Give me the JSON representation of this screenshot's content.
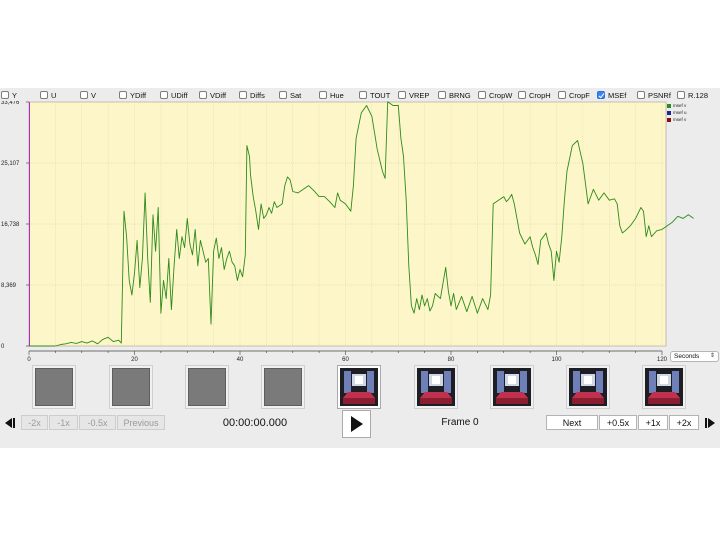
{
  "filters": [
    {
      "label": "Y",
      "checked": false
    },
    {
      "label": "U",
      "checked": false
    },
    {
      "label": "V",
      "checked": false
    },
    {
      "label": "YDiff",
      "checked": false
    },
    {
      "label": "UDiff",
      "checked": false
    },
    {
      "label": "VDiff",
      "checked": false
    },
    {
      "label": "Diffs",
      "checked": false
    },
    {
      "label": "Sat",
      "checked": false
    },
    {
      "label": "Hue",
      "checked": false
    },
    {
      "label": "TOUT",
      "checked": false
    },
    {
      "label": "VREP",
      "checked": false
    },
    {
      "label": "BRNG",
      "checked": false
    },
    {
      "label": "CropW",
      "checked": false
    },
    {
      "label": "CropH",
      "checked": false
    },
    {
      "label": "CropF",
      "checked": false
    },
    {
      "label": "MSEf",
      "checked": true
    },
    {
      "label": "PSNRf",
      "checked": false
    },
    {
      "label": "R.128",
      "checked": false
    }
  ],
  "legend": [
    {
      "label": "msef v",
      "color": "#2e8b1a"
    },
    {
      "label": "msef u",
      "color": "#1c2a8a"
    },
    {
      "label": "msef v",
      "color": "#8a1010"
    }
  ],
  "units": "Seconds",
  "colors": {
    "plot_bg": "#fdf6c9",
    "series": "#2e8b1a",
    "grid": "#d9cf9a"
  },
  "chart_data": {
    "type": "line",
    "series_name": "msef v",
    "xlabel": "",
    "ylabel": "",
    "xlim": [
      0,
      120
    ],
    "ylim": [
      0,
      33476
    ],
    "y_ticks": [
      {
        "value": 33476,
        "label": "33,476"
      },
      {
        "value": 25107,
        "label": "25,107"
      },
      {
        "value": 16738,
        "label": "16,738"
      },
      {
        "value": 8369,
        "label": "8,369"
      },
      {
        "value": 0,
        "label": "0"
      }
    ],
    "x_ticks": [
      {
        "value": 0,
        "label": "0"
      },
      {
        "value": 20,
        "label": "20"
      },
      {
        "value": 40,
        "label": "40"
      },
      {
        "value": 60,
        "label": "60"
      },
      {
        "value": 80,
        "label": "80"
      },
      {
        "value": 100,
        "label": "100"
      },
      {
        "value": 120,
        "label": "120"
      }
    ],
    "points": [
      [
        5,
        0
      ],
      [
        6,
        200
      ],
      [
        7,
        300
      ],
      [
        8,
        500
      ],
      [
        9,
        350
      ],
      [
        10,
        600
      ],
      [
        11,
        400
      ],
      [
        12,
        700
      ],
      [
        13,
        300
      ],
      [
        14,
        900
      ],
      [
        15,
        1200
      ],
      [
        16,
        600
      ],
      [
        17,
        800
      ],
      [
        17.5,
        400
      ],
      [
        18,
        18500
      ],
      [
        18.5,
        15000
      ],
      [
        19,
        9000
      ],
      [
        19.5,
        7000
      ],
      [
        20,
        10000
      ],
      [
        20.5,
        14500
      ],
      [
        21,
        8000
      ],
      [
        21.5,
        12000
      ],
      [
        22,
        21000
      ],
      [
        22.5,
        12000
      ],
      [
        23,
        6000
      ],
      [
        23.5,
        18000
      ],
      [
        24,
        13000
      ],
      [
        24.5,
        19000
      ],
      [
        25,
        4500
      ],
      [
        25.5,
        9000
      ],
      [
        26,
        6500
      ],
      [
        26.5,
        12000
      ],
      [
        27,
        5000
      ],
      [
        27.5,
        11000
      ],
      [
        28,
        16000
      ],
      [
        28.5,
        12000
      ],
      [
        29,
        15000
      ],
      [
        29.5,
        13500
      ],
      [
        30,
        17500
      ],
      [
        30.5,
        14000
      ],
      [
        31,
        12500
      ],
      [
        31.5,
        16000
      ],
      [
        32,
        11000
      ],
      [
        32.5,
        14500
      ],
      [
        33,
        13000
      ],
      [
        33.5,
        11500
      ],
      [
        34,
        12000
      ],
      [
        34.5,
        3000
      ],
      [
        35,
        13000
      ],
      [
        35.5,
        14800
      ],
      [
        36,
        12000
      ],
      [
        36.5,
        13500
      ],
      [
        37,
        10500
      ],
      [
        37.5,
        12000
      ],
      [
        38,
        13000
      ],
      [
        38.5,
        11500
      ],
      [
        39,
        11000
      ],
      [
        39.5,
        9000
      ],
      [
        40,
        10500
      ],
      [
        40.5,
        9500
      ],
      [
        41,
        12500
      ],
      [
        41.3,
        27500
      ],
      [
        41.8,
        26000
      ],
      [
        42,
        23500
      ],
      [
        42.5,
        20500
      ],
      [
        43,
        18500
      ],
      [
        43.5,
        16000
      ],
      [
        44,
        19500
      ],
      [
        44.5,
        17500
      ],
      [
        45,
        18000
      ],
      [
        45.5,
        19000
      ],
      [
        46,
        18200
      ],
      [
        46.5,
        19800
      ],
      [
        47,
        19000
      ],
      [
        48,
        19500
      ],
      [
        48.5,
        22000
      ],
      [
        49,
        23200
      ],
      [
        49.5,
        22800
      ],
      [
        50,
        21200
      ],
      [
        51,
        21000
      ],
      [
        52,
        21500
      ],
      [
        53,
        22000
      ],
      [
        54,
        21300
      ],
      [
        55,
        20500
      ],
      [
        56,
        20500
      ],
      [
        57,
        19800
      ],
      [
        58,
        19000
      ],
      [
        58.5,
        21000
      ],
      [
        59,
        20000
      ],
      [
        60,
        19500
      ],
      [
        61,
        18500
      ],
      [
        61.5,
        22000
      ],
      [
        62,
        28500
      ],
      [
        63,
        32000
      ],
      [
        64,
        33000
      ],
      [
        65,
        31500
      ],
      [
        66,
        27000
      ],
      [
        67,
        24000
      ],
      [
        67.5,
        23000
      ],
      [
        68,
        33500
      ],
      [
        69,
        33000
      ],
      [
        70,
        33000
      ],
      [
        70.5,
        28500
      ],
      [
        71,
        26000
      ],
      [
        71.5,
        20000
      ],
      [
        72,
        11000
      ],
      [
        72.5,
        5500
      ],
      [
        73,
        4500
      ],
      [
        73.5,
        6500
      ],
      [
        74,
        5000
      ],
      [
        74.5,
        7000
      ],
      [
        75,
        5500
      ],
      [
        75.5,
        6500
      ],
      [
        76,
        4800
      ],
      [
        76.5,
        5500
      ],
      [
        77,
        7200
      ],
      [
        78,
        6500
      ],
      [
        79,
        10800
      ],
      [
        79.5,
        7500
      ],
      [
        80,
        5500
      ],
      [
        80.5,
        7200
      ],
      [
        81,
        5000
      ],
      [
        82,
        6800
      ],
      [
        83,
        4700
      ],
      [
        84,
        6800
      ],
      [
        85,
        4500
      ],
      [
        86,
        6500
      ],
      [
        87,
        5000
      ],
      [
        87.5,
        7000
      ],
      [
        88,
        19500
      ],
      [
        89,
        20000
      ],
      [
        90,
        20500
      ],
      [
        90.5,
        19800
      ],
      [
        91,
        20200
      ],
      [
        91.5,
        20800
      ],
      [
        92,
        19500
      ],
      [
        93,
        15500
      ],
      [
        94,
        14000
      ],
      [
        95,
        15000
      ],
      [
        95.5,
        13500
      ],
      [
        96,
        12500
      ],
      [
        96.5,
        11200
      ],
      [
        97,
        14500
      ],
      [
        98,
        15500
      ],
      [
        98.5,
        14000
      ],
      [
        99,
        13000
      ],
      [
        99.5,
        9000
      ],
      [
        100,
        13000
      ],
      [
        100.5,
        11500
      ],
      [
        101,
        15000
      ],
      [
        101.5,
        20000
      ],
      [
        102,
        24000
      ],
      [
        103,
        27500
      ],
      [
        104,
        28200
      ],
      [
        105,
        25000
      ],
      [
        106,
        19500
      ],
      [
        107,
        21500
      ],
      [
        108,
        20000
      ],
      [
        109,
        21000
      ],
      [
        110,
        20000
      ],
      [
        111,
        20200
      ],
      [
        111.5,
        19500
      ],
      [
        112,
        16500
      ],
      [
        112.5,
        15500
      ],
      [
        113,
        15800
      ],
      [
        114,
        16500
      ],
      [
        115,
        17500
      ],
      [
        116,
        19000
      ],
      [
        116.5,
        18500
      ],
      [
        117,
        15000
      ],
      [
        117.5,
        16500
      ],
      [
        118,
        15000
      ],
      [
        119,
        15800
      ],
      [
        120,
        16000
      ],
      [
        121,
        16500
      ],
      [
        122,
        17000
      ],
      [
        123,
        17800
      ],
      [
        124,
        17500
      ],
      [
        125,
        18000
      ],
      [
        126,
        17500
      ]
    ]
  },
  "thumbnails": [
    {
      "kind": "blank"
    },
    {
      "kind": "blank"
    },
    {
      "kind": "blank"
    },
    {
      "kind": "blank"
    },
    {
      "kind": "frame",
      "current": true
    },
    {
      "kind": "frame",
      "current": false
    },
    {
      "kind": "frame",
      "current": false
    },
    {
      "kind": "frame",
      "current": false
    },
    {
      "kind": "frame",
      "current": false
    }
  ],
  "controls": {
    "step_back_icon": "skip-back-icon",
    "minus_2x": "-2x",
    "minus_1x": "-1x",
    "minus_05x": "-0.5x",
    "previous": "Previous",
    "timecode": "00:00:00.000",
    "play_icon": "play-icon",
    "frame_label": "Frame 0",
    "next": "Next",
    "plus_05x": "+0.5x",
    "plus_1x": "+1x",
    "plus_2x": "+2x",
    "step_forward_icon": "skip-forward-icon"
  }
}
